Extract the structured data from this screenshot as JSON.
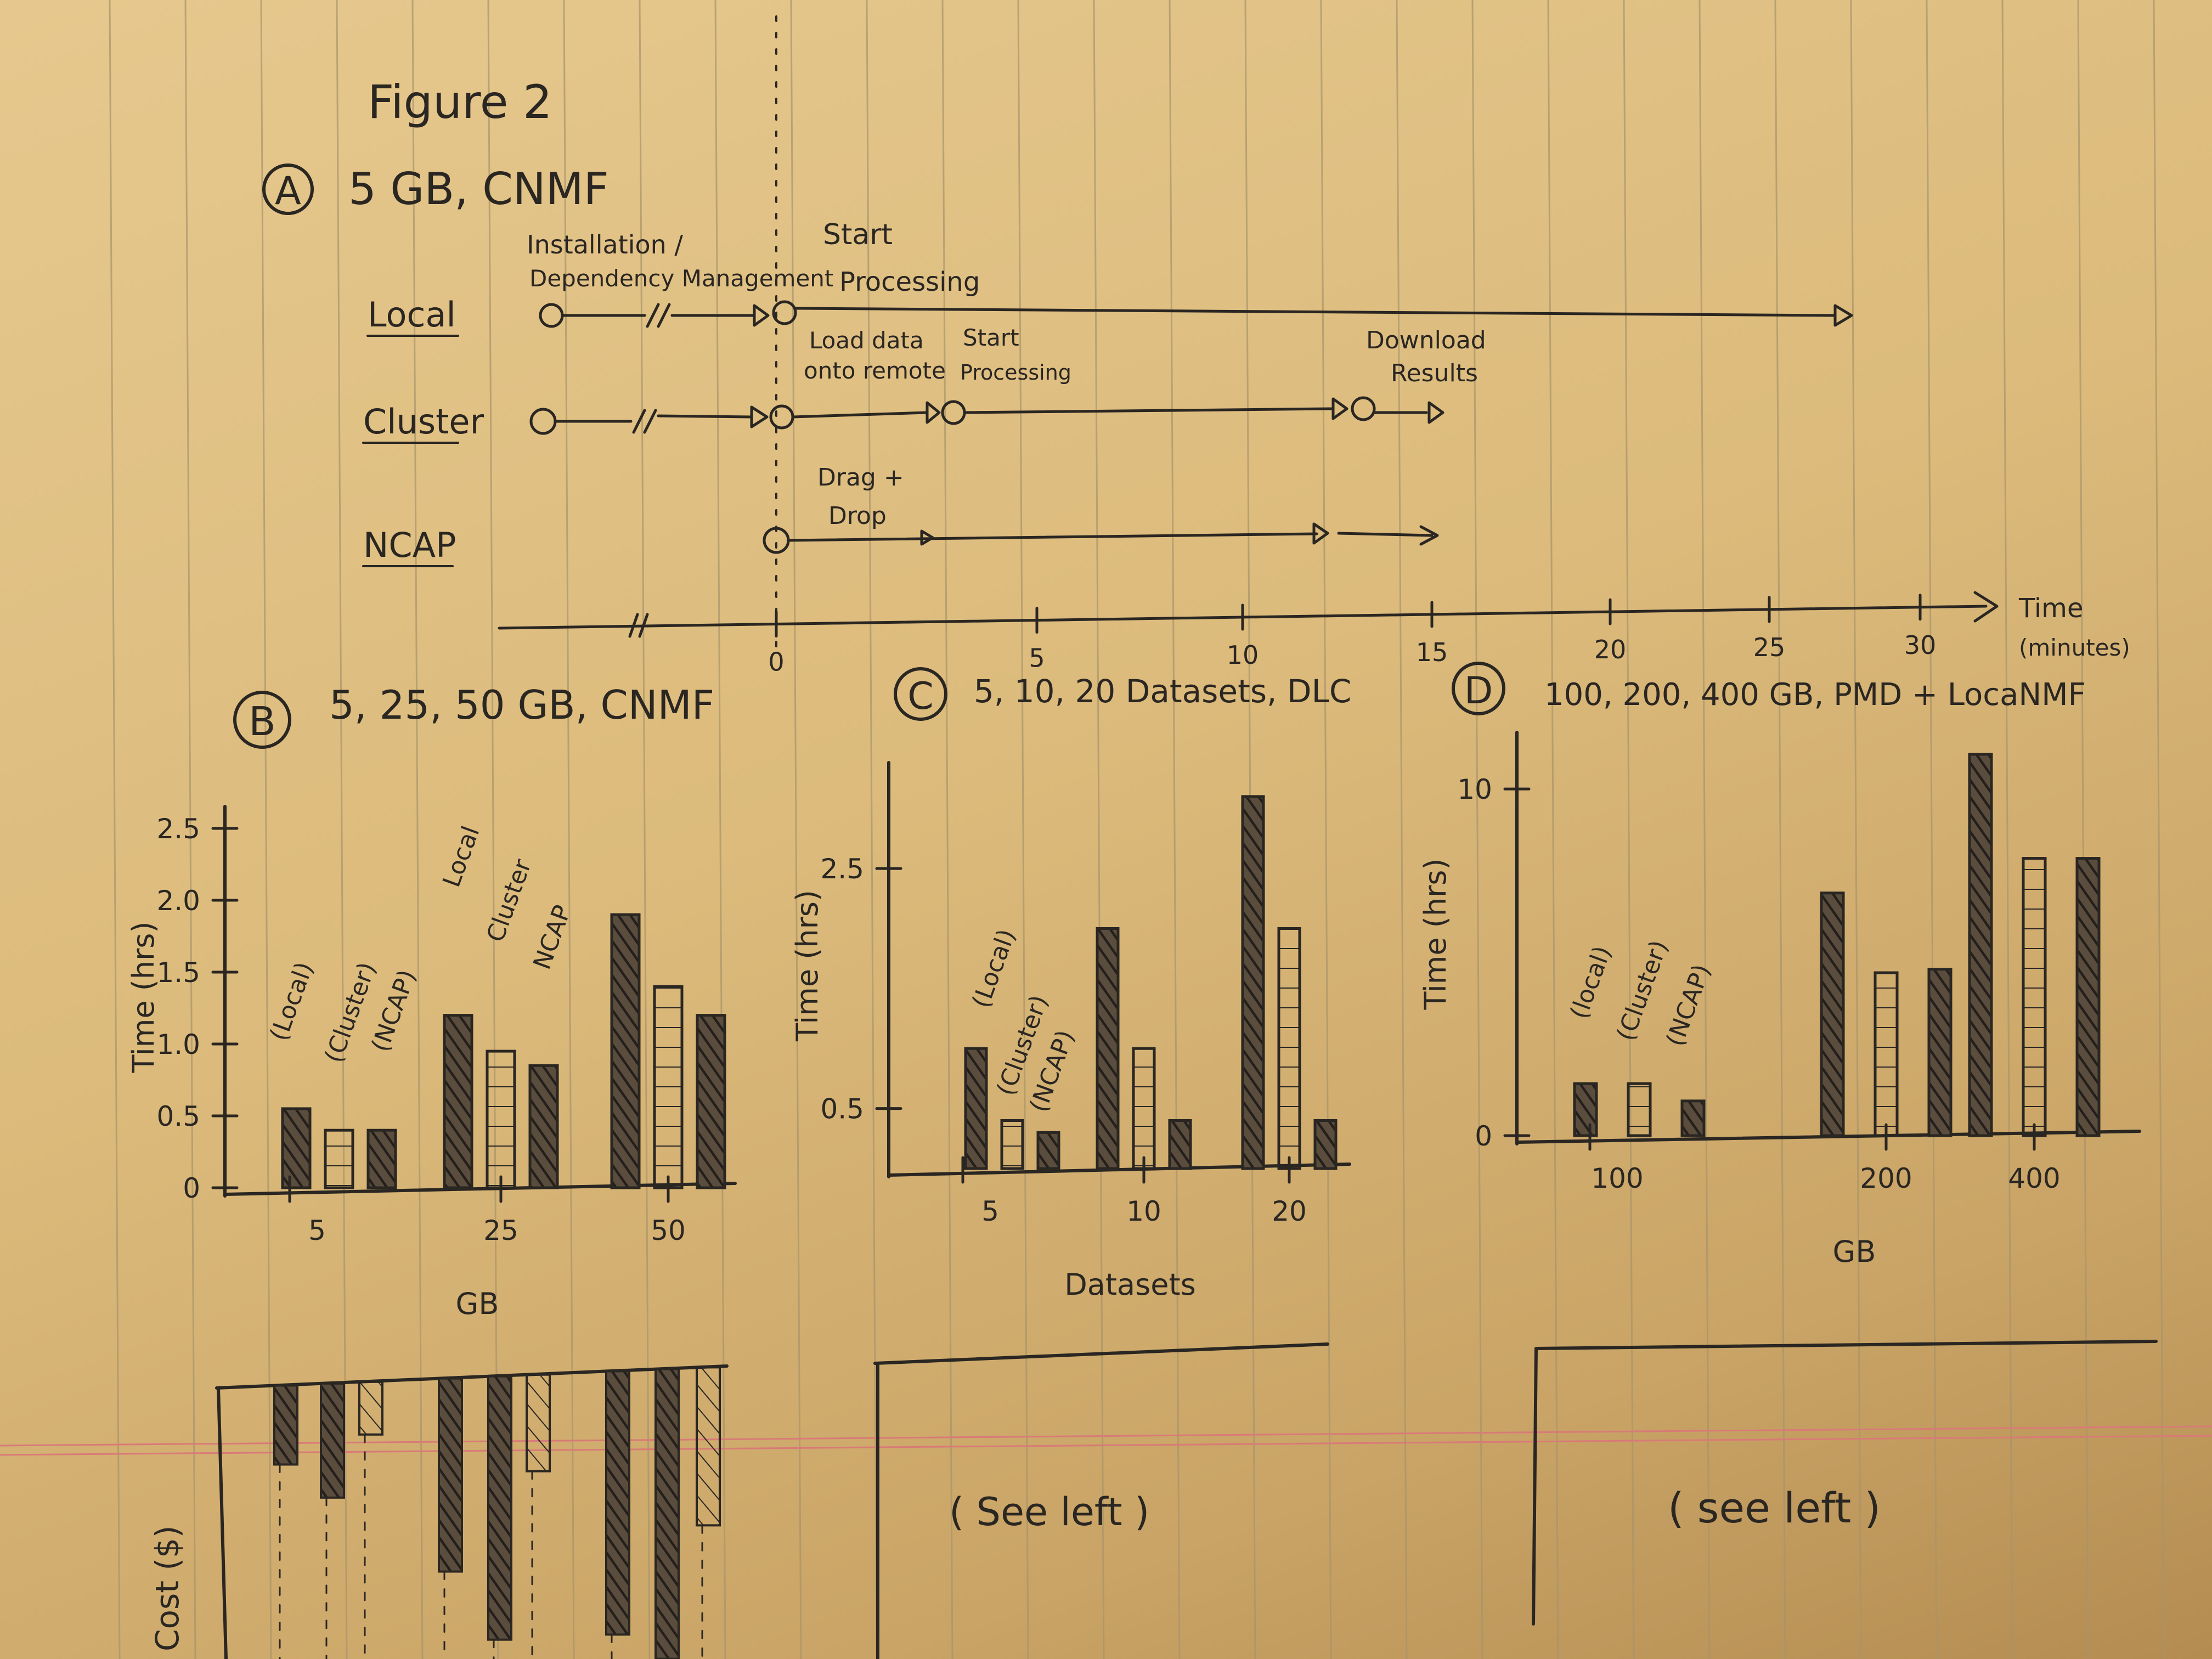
{
  "figure_title": "Figure 2",
  "panel_a": {
    "letter": "A",
    "title": "5 GB, CNMF",
    "rows": [
      "Local",
      "Cluster",
      "NCAP"
    ],
    "annotations": {
      "install_1": "Installation /",
      "install_2": "Dependency Management",
      "start_1": "Start",
      "start_2": "Processing",
      "load_1": "Load data",
      "load_2": "onto remote",
      "start_c1": "Start",
      "start_c2": "Processing",
      "download_1": "Download",
      "download_2": "Results",
      "drag_1": "Drag +",
      "drag_2": "Drop"
    },
    "axis_ticks": [
      "0",
      "5",
      "10",
      "15",
      "20",
      "25",
      "30"
    ],
    "axis_label_1": "Time",
    "axis_label_2": "(minutes)"
  },
  "panel_b": {
    "letter": "B",
    "title": "5, 25, 50 GB, CNMF",
    "ylabel": "Time (hrs)",
    "yticks": [
      "0",
      "0.5",
      "1.0",
      "1.5",
      "2.0",
      "2.5"
    ],
    "xlabel": "GB",
    "xticks": [
      "5",
      "25",
      "50"
    ],
    "bar_labels": [
      "(Local)",
      "(Cluster)",
      "(NCAP)",
      "Local",
      "Cluster",
      "NCAP"
    ]
  },
  "panel_c": {
    "letter": "C",
    "title": "5, 10, 20 Datasets, DLC",
    "ylabel": "Time (hrs)",
    "yticks": [
      "0.5",
      "2.5"
    ],
    "xlabel": "Datasets",
    "xticks": [
      "5",
      "10",
      "20"
    ],
    "bar_labels": [
      "(Local)",
      "(Cluster)",
      "(NCAP)"
    ]
  },
  "panel_d": {
    "letter": "D",
    "title": "100, 200, 400 GB, PMD + LocaNMF",
    "ylabel": "Time (hrs)",
    "yticks": [
      "0",
      "10"
    ],
    "xlabel": "GB",
    "xticks": [
      "100",
      "200",
      "400"
    ],
    "bar_labels": [
      "(local)",
      "(Cluster)",
      "(NCAP)"
    ]
  },
  "cost": {
    "ylabel": "Cost ($)",
    "see_left_c": "( See left )",
    "see_left_d": "( see left )"
  },
  "chart_data": [
    {
      "type": "bar",
      "categories": [
        "5",
        "25",
        "50"
      ],
      "xlabel": "GB",
      "ylabel": "Time (hrs)",
      "ylim": [
        0,
        2.5
      ],
      "series": [
        {
          "name": "Local",
          "values": [
            0.55,
            1.2,
            1.9
          ]
        },
        {
          "name": "Cluster",
          "values": [
            0.4,
            0.95,
            1.4
          ]
        },
        {
          "name": "NCAP",
          "values": [
            0.4,
            0.85,
            1.2
          ]
        }
      ]
    },
    {
      "type": "bar",
      "categories": [
        "5",
        "10",
        "20"
      ],
      "xlabel": "Datasets",
      "ylabel": "Time (hrs)",
      "ylim": [
        0,
        3.2
      ],
      "series": [
        {
          "name": "Local",
          "values": [
            1.0,
            2.0,
            3.1
          ]
        },
        {
          "name": "Cluster",
          "values": [
            0.4,
            1.0,
            2.0
          ]
        },
        {
          "name": "NCAP",
          "values": [
            0.3,
            0.4,
            0.4
          ]
        }
      ]
    },
    {
      "type": "bar",
      "categories": [
        "100",
        "200",
        "400"
      ],
      "xlabel": "GB",
      "ylabel": "Time (hrs)",
      "ylim": [
        0,
        11
      ],
      "series": [
        {
          "name": "local",
          "values": [
            1.5,
            7.0,
            11.0
          ]
        },
        {
          "name": "Cluster",
          "values": [
            1.5,
            4.7,
            8.0
          ]
        },
        {
          "name": "NCAP",
          "values": [
            1.0,
            4.8,
            8.0
          ]
        }
      ]
    }
  ]
}
